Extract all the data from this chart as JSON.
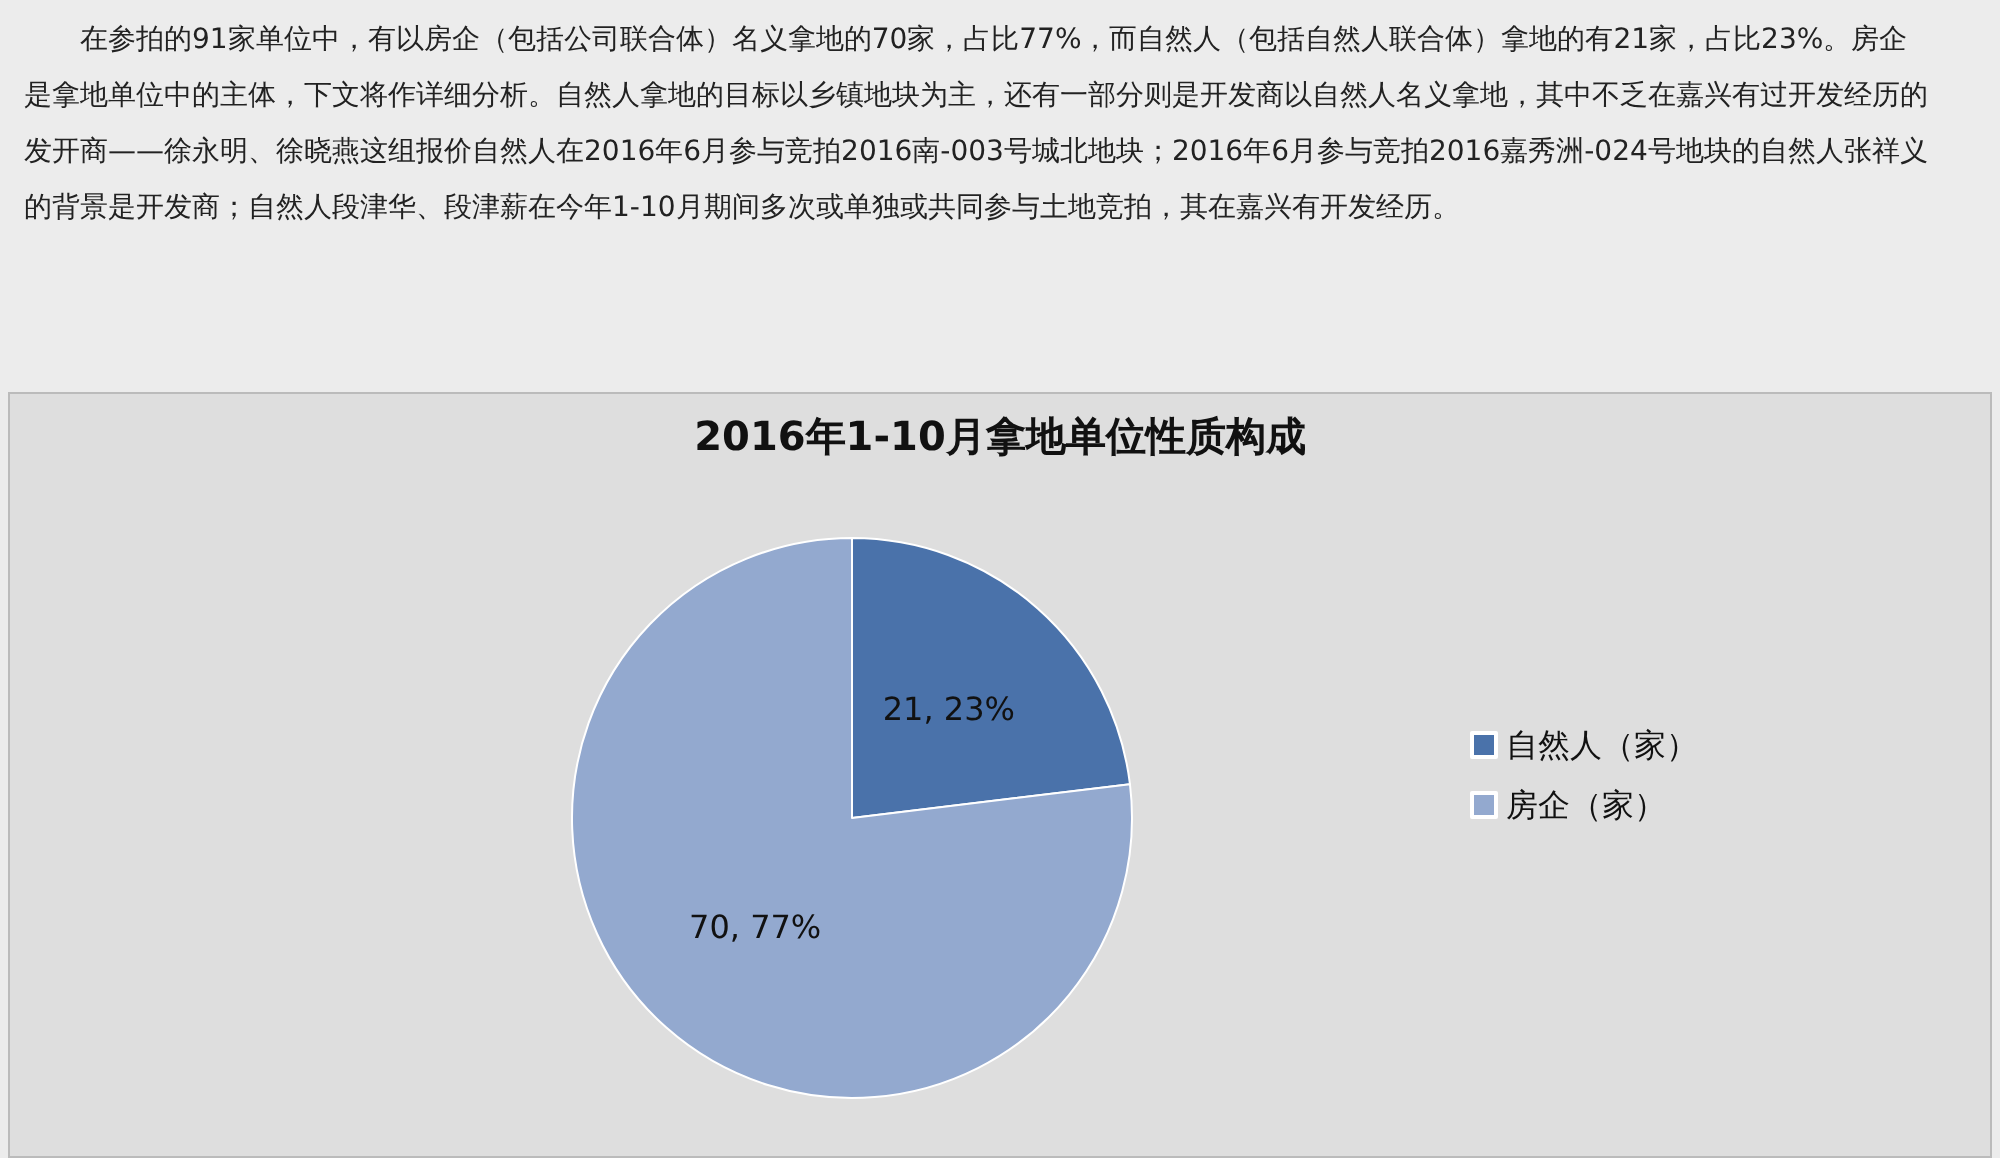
{
  "chart_data": {
    "type": "pie",
    "title": "2016年1-10月拿地单位性质构成",
    "categories": [
      "自然人（家）",
      "房企（家）"
    ],
    "values": [
      21,
      70
    ],
    "colors": [
      "#4a72aa",
      "#93a9cf"
    ],
    "value_labels": [
      "21, 23%",
      "70, 77%"
    ],
    "legend": "right",
    "annotations": [
      "在参拍的91家单位中，有以房企（包括公司联合体）名义拿地的70家，占比77%，而自然人（包括自然人联合体）拿地的有21家，占比23%。房企是拿地单位中的主体，下文将作详细分析。自然人拿地的目标以乡镇地块为主，还有一部分则是开发商以自然人名义拿地，其中不乏在嘉兴有过开发经历的发开商——徐永明、徐晓燕这组报价自然人在2016年6月参与竞拍2016南-003号城北地块；2016年6月参与竞拍2016嘉秀洲-024号地块的自然人张祥义的背景是开发商；自然人段津华、段津薪在今年1-10月期间多次或单独或共同参与土地竞拍，其在嘉兴有开发经历。"
    ]
  }
}
